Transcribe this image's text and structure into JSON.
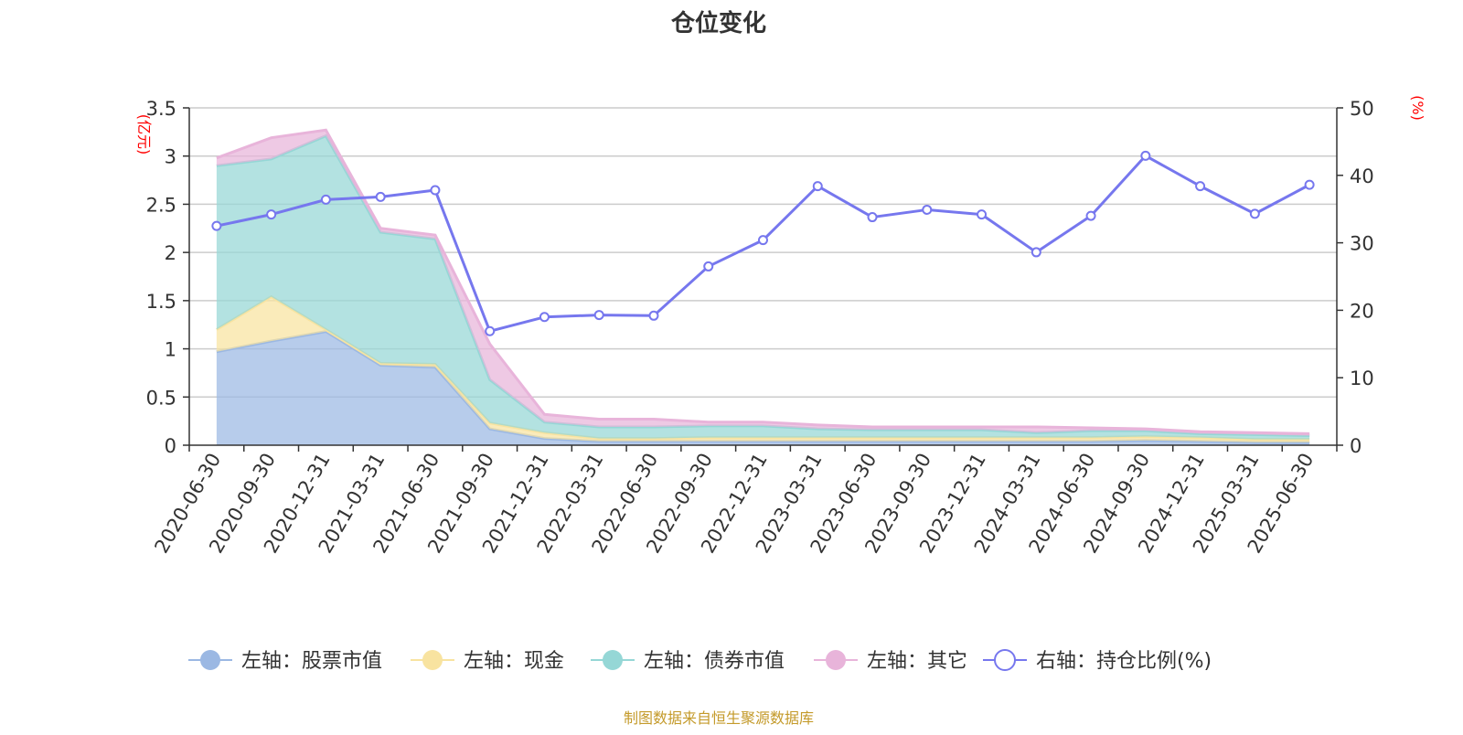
{
  "chart_data": {
    "type": "area",
    "title": "仓位变化",
    "left_axis_unit": "(亿元)",
    "right_axis_unit": "(%)",
    "categories": [
      "2020-06-30",
      "2020-09-30",
      "2020-12-31",
      "2021-03-31",
      "2021-06-30",
      "2021-09-30",
      "2021-12-31",
      "2022-03-31",
      "2022-06-30",
      "2022-09-30",
      "2022-12-31",
      "2023-03-31",
      "2023-06-30",
      "2023-09-30",
      "2023-12-31",
      "2024-03-31",
      "2024-06-30",
      "2024-09-30",
      "2024-12-31",
      "2025-03-31",
      "2025-06-30"
    ],
    "left_axis": {
      "min": 0,
      "max": 3.5,
      "ticks": [
        "0",
        "0.5",
        "1",
        "1.5",
        "2",
        "2.5",
        "3",
        "3.5"
      ]
    },
    "right_axis": {
      "min": 0,
      "max": 50,
      "ticks": [
        "0",
        "10",
        "20",
        "30",
        "40",
        "50"
      ]
    },
    "grid": true,
    "legend_position": "bottom",
    "series": [
      {
        "name": "左轴：股票市值",
        "axis": "left",
        "stack": true,
        "color": "#9bb8e3",
        "values": [
          0.97,
          1.08,
          1.18,
          0.83,
          0.81,
          0.17,
          0.07,
          0.04,
          0.04,
          0.04,
          0.04,
          0.04,
          0.04,
          0.04,
          0.04,
          0.04,
          0.04,
          0.05,
          0.04,
          0.03,
          0.03
        ]
      },
      {
        "name": "左轴：现金",
        "axis": "left",
        "stack": true,
        "color": "#f8e3a0",
        "values": [
          0.23,
          0.46,
          0.02,
          0.02,
          0.03,
          0.06,
          0.06,
          0.03,
          0.03,
          0.04,
          0.04,
          0.04,
          0.04,
          0.04,
          0.04,
          0.04,
          0.04,
          0.04,
          0.04,
          0.03,
          0.03
        ]
      },
      {
        "name": "左轴：债券市值",
        "axis": "left",
        "stack": true,
        "color": "#95d7d6",
        "values": [
          1.7,
          1.43,
          2.01,
          1.36,
          1.3,
          0.45,
          0.11,
          0.12,
          0.12,
          0.12,
          0.12,
          0.09,
          0.08,
          0.08,
          0.08,
          0.05,
          0.07,
          0.06,
          0.04,
          0.05,
          0.04
        ]
      },
      {
        "name": "左轴：其它",
        "axis": "left",
        "stack": true,
        "color": "#e8b4da",
        "values": [
          0.08,
          0.22,
          0.06,
          0.04,
          0.04,
          0.37,
          0.08,
          0.08,
          0.08,
          0.04,
          0.04,
          0.04,
          0.03,
          0.03,
          0.03,
          0.06,
          0.03,
          0.02,
          0.02,
          0.02,
          0.02
        ]
      },
      {
        "name": "右轴：持仓比例(%)",
        "axis": "right",
        "type": "line",
        "color": "#7677ee",
        "values": [
          32.5,
          34.2,
          36.4,
          36.8,
          37.8,
          16.9,
          19.0,
          19.3,
          19.2,
          26.5,
          30.4,
          38.4,
          33.8,
          34.9,
          34.2,
          28.6,
          34.0,
          42.9,
          38.4,
          34.3,
          38.6
        ]
      }
    ],
    "source_note": "制图数据来自恒生聚源数据库"
  }
}
